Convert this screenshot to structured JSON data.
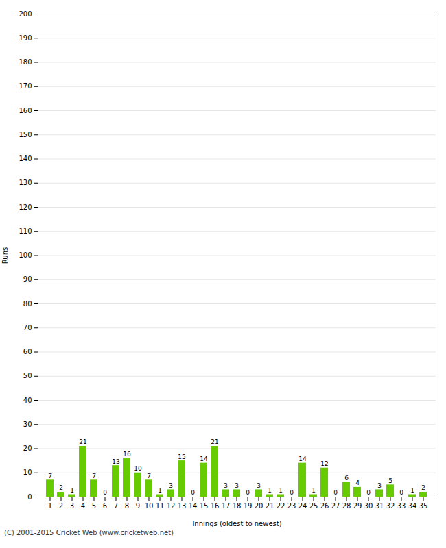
{
  "chart_data": {
    "type": "bar",
    "categories": [
      1,
      2,
      3,
      4,
      5,
      6,
      7,
      8,
      9,
      10,
      11,
      12,
      13,
      14,
      15,
      16,
      17,
      18,
      19,
      20,
      21,
      22,
      23,
      24,
      25,
      26,
      27,
      28,
      29,
      30,
      31,
      32,
      33,
      34,
      35
    ],
    "values": [
      7,
      2,
      1,
      21,
      7,
      0,
      13,
      16,
      10,
      7,
      1,
      3,
      15,
      0,
      14,
      21,
      3,
      3,
      0,
      3,
      1,
      1,
      0,
      14,
      1,
      12,
      0,
      6,
      4,
      0,
      3,
      5,
      0,
      1,
      2
    ],
    "color": "#66cc00",
    "xlabel": "Innings (oldest to newest)",
    "ylabel": "Runs",
    "ylim": [
      0,
      200
    ],
    "yticks": [
      0,
      10,
      20,
      30,
      40,
      50,
      60,
      70,
      80,
      90,
      100,
      110,
      120,
      130,
      140,
      150,
      160,
      170,
      180,
      190,
      200
    ],
    "grid": true,
    "data_labels": true,
    "footer": "(C) 2001-2015 Cricket Web (www.cricketweb.net)"
  }
}
